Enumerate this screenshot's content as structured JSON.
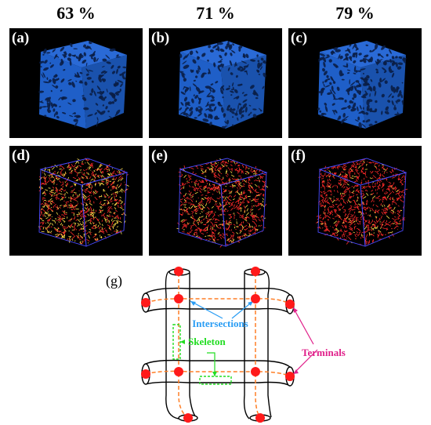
{
  "column_titles": [
    "63 %",
    "71 %",
    "79 %"
  ],
  "panels": [
    {
      "label": "(a)",
      "type": "solid",
      "pore_density": 63
    },
    {
      "label": "(b)",
      "type": "solid",
      "pore_density": 71
    },
    {
      "label": "(c)",
      "type": "solid",
      "pore_density": 79
    },
    {
      "label": "(d)",
      "type": "skeleton"
    },
    {
      "label": "(e)",
      "type": "skeleton"
    },
    {
      "label": "(f)",
      "type": "skeleton"
    }
  ],
  "diagram": {
    "label": "(g)",
    "intersections_label": "Intersections",
    "skeleton_label": "Skeleton",
    "terminals_label": "Terminals"
  },
  "colors": {
    "cube_front": "#1f5fc8",
    "cube_side": "#1a52ad",
    "cube_top": "#2a6ad6",
    "skeleton_red": "#ff2a2a",
    "skeleton_yellow": "#ffe04a",
    "edge_blue": "#4a4aff",
    "intersections": "#2a9df4",
    "skeleton": "#22dd22",
    "terminals": "#e0208a",
    "node": "#ff1a1a",
    "dash": "#ff7f27"
  }
}
